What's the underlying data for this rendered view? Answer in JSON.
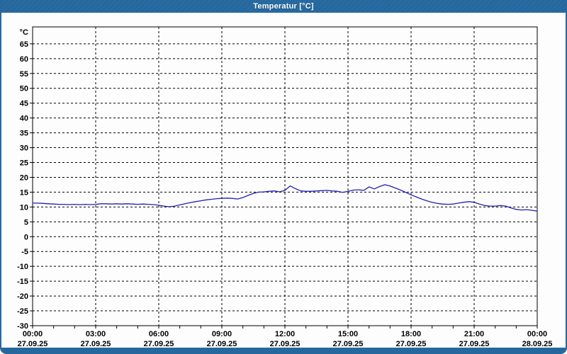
{
  "window": {
    "title": "Temperatur [°C]",
    "colors": {
      "titlebar": "#26689e",
      "titlebar_dot": "#2e70a6",
      "border": "#26689e",
      "background": "#fdfdfd",
      "line": "#2222b2",
      "text": "#000000"
    }
  },
  "chart_data": {
    "type": "line",
    "title": "Temperatur [°C]",
    "ylabel": "°C",
    "xlabel": "",
    "grid": "dashed",
    "legend": "none",
    "ylim": [
      -30,
      70.7
    ],
    "xlim_hours": [
      0,
      24
    ],
    "y_tick_step": 5,
    "y_ticks": [
      65,
      60,
      55,
      50,
      45,
      40,
      35,
      30,
      25,
      20,
      15,
      10,
      5,
      0,
      -5,
      -10,
      -15,
      -20,
      -25,
      -30
    ],
    "minor_x_tick_hours": 1,
    "x_ticks": [
      {
        "hour": 0,
        "time": "00:00",
        "date": "27.09.25"
      },
      {
        "hour": 3,
        "time": "03:00",
        "date": "27.09.25"
      },
      {
        "hour": 6,
        "time": "06:00",
        "date": "27.09.25"
      },
      {
        "hour": 9,
        "time": "09:00",
        "date": "27.09.25"
      },
      {
        "hour": 12,
        "time": "12:00",
        "date": "27.09.25"
      },
      {
        "hour": 15,
        "time": "15:00",
        "date": "27.09.25"
      },
      {
        "hour": 18,
        "time": "18:00",
        "date": "27.09.25"
      },
      {
        "hour": 21,
        "time": "21:00",
        "date": "27.09.25"
      },
      {
        "hour": 24,
        "time": "00:00",
        "date": "28.09.25"
      }
    ],
    "series": [
      {
        "name": "Temperatur",
        "color": "#2222b2",
        "x_start_hour": 0,
        "x_step_hours": 0.25,
        "values": [
          11.3,
          11.3,
          11.2,
          11.1,
          11.0,
          10.9,
          10.9,
          10.8,
          10.9,
          10.8,
          10.9,
          10.8,
          10.9,
          11.1,
          11.1,
          11.0,
          11.1,
          11.0,
          11.1,
          11.0,
          10.9,
          11.0,
          10.9,
          10.8,
          10.6,
          10.3,
          10.1,
          10.3,
          10.7,
          11.1,
          11.5,
          11.8,
          12.1,
          12.4,
          12.6,
          12.8,
          12.9,
          13.0,
          12.9,
          12.7,
          13.2,
          13.9,
          14.6,
          15.0,
          15.1,
          15.3,
          15.4,
          15.1,
          15.6,
          17.1,
          16.2,
          15.4,
          15.3,
          15.3,
          15.4,
          15.5,
          15.6,
          15.4,
          15.3,
          14.9,
          15.3,
          15.7,
          15.8,
          15.6,
          16.8,
          16.1,
          16.9,
          17.5,
          17.1,
          16.4,
          15.7,
          14.9,
          14.1,
          13.4,
          12.7,
          12.1,
          11.6,
          11.2,
          11.0,
          10.9,
          11.0,
          11.3,
          11.6,
          11.8,
          11.6,
          11.0,
          10.5,
          10.3,
          10.3,
          10.5,
          10.3,
          9.7,
          9.2,
          9.0,
          9.1,
          8.9,
          8.6
        ]
      }
    ]
  }
}
